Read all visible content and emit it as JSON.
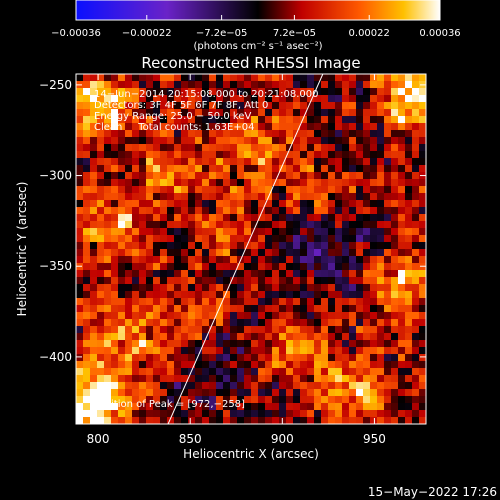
{
  "chart_data": {
    "type": "heatmap",
    "title": "Reconstructed RHESSI Image",
    "xlabel": "Heliocentric X (arcsec)",
    "ylabel": "Heliocentric Y (arcsec)",
    "xlim": [
      788,
      978
    ],
    "ylim": [
      -437,
      -244
    ],
    "x_ticks": [
      800,
      850,
      900,
      950
    ],
    "y_ticks": [
      -250,
      -300,
      -350,
      -400
    ],
    "x_tick_labels": [
      "800",
      "850",
      "900",
      "950"
    ],
    "y_tick_labels": [
      "−250",
      "−300",
      "−350",
      "−400"
    ],
    "colorbar": {
      "ticks": [
        "−0.00036",
        "−0.00022",
        "−7.2e−05",
        "7.2e−05",
        "0.00022",
        "0.00036"
      ],
      "tick_values": [
        -0.00036,
        -0.00022,
        -7.2e-05,
        7.2e-05,
        0.00022,
        0.00036
      ],
      "range": [
        -0.00036,
        0.00036
      ],
      "unit_label": "(photons cm⁻² s⁻¹ asec⁻²)",
      "colormap": "blue-purple-black-red-orange-yellow-white"
    },
    "annotations": {
      "time_range": "14−Jun−2014 20:15:08.000 to 20:21:08.000",
      "detectors": "Detectors: 3F 4F 5F 6F 7F 8F, Att 0",
      "energy": "Energy Range: 25.0 − 50.0 keV",
      "clean": "Clean     Total counts: 1.63E+04",
      "peak": "Position of Peak = [972,−258]"
    },
    "limb_line": {
      "x1": 838,
      "y1": -437,
      "x2": 922,
      "y2": -244
    },
    "bright_regions": [
      {
        "x": 972,
        "y": -258,
        "strength": 1.0
      },
      {
        "x": 797,
        "y": -425,
        "strength": 1.0
      },
      {
        "x": 800,
        "y": -262,
        "strength": 0.7
      },
      {
        "x": 965,
        "y": -360,
        "strength": 0.55
      },
      {
        "x": 940,
        "y": -420,
        "strength": 0.5
      },
      {
        "x": 905,
        "y": -395,
        "strength": 0.45
      },
      {
        "x": 880,
        "y": -285,
        "strength": 0.4
      },
      {
        "x": 870,
        "y": -330,
        "strength": 0.45
      },
      {
        "x": 835,
        "y": -300,
        "strength": 0.45
      },
      {
        "x": 810,
        "y": -330,
        "strength": 0.5
      },
      {
        "x": 815,
        "y": -390,
        "strength": 0.45
      },
      {
        "x": 850,
        "y": -375,
        "strength": 0.4
      },
      {
        "x": 920,
        "y": -305,
        "strength": 0.4
      },
      {
        "x": 960,
        "y": -300,
        "strength": 0.35
      }
    ],
    "dark_regions": [
      {
        "x": 925,
        "y": -340,
        "strength": 0.7
      },
      {
        "x": 960,
        "y": -285,
        "strength": 0.5
      },
      {
        "x": 870,
        "y": -400,
        "strength": 0.45
      },
      {
        "x": 845,
        "y": -320,
        "strength": 0.3
      }
    ],
    "grid": false
  },
  "footer": {
    "timestamp": "15−May−2022 17:26"
  }
}
